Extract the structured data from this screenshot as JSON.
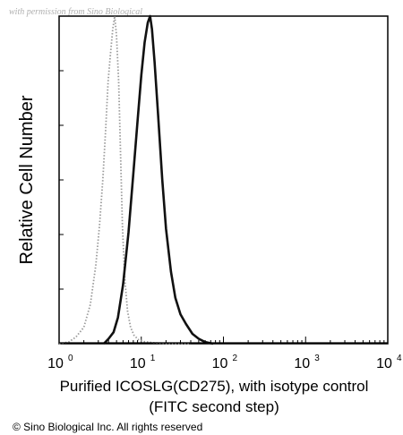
{
  "watermark": "with permission from Sino Biological",
  "copyright": "© Sino Biological Inc. All rights reserved",
  "chart_data": {
    "type": "line",
    "xscale": "log",
    "xlim": [
      1,
      10000
    ],
    "ylim": [
      0,
      100
    ],
    "xticks": [
      {
        "base": "10",
        "exp": "0",
        "value": 1
      },
      {
        "base": "10",
        "exp": "1",
        "value": 10
      },
      {
        "base": "10",
        "exp": "2",
        "value": 100
      },
      {
        "base": "10",
        "exp": "3",
        "value": 1000
      },
      {
        "base": "10",
        "exp": "4",
        "value": 10000
      }
    ],
    "xlabel_line1": "Purified ICOSLG(CD275), with isotype control",
    "xlabel_line2": "(FITC second step)",
    "ylabel": "Relative Cell Number",
    "grid": false,
    "series": [
      {
        "style": "dotted",
        "color": "#9a9a9a",
        "x": [
          1.0,
          1.3,
          1.6,
          2.0,
          2.4,
          2.8,
          3.1,
          3.4,
          3.7,
          3.95,
          4.2,
          4.5,
          4.75,
          5.0,
          5.3,
          5.6,
          5.9,
          6.3,
          6.8,
          7.4,
          8.2,
          9.3,
          11,
          14,
          20,
          40
        ],
        "y": [
          0,
          0.5,
          2,
          5,
          12,
          24,
          36,
          50,
          66,
          80,
          88,
          96,
          100,
          94,
          80,
          58,
          36,
          20,
          10,
          5,
          2.5,
          1.2,
          0.6,
          0.3,
          0.1,
          0
        ]
      },
      {
        "style": "solid",
        "color": "#111111",
        "x": [
          3.5,
          4.0,
          4.6,
          5.2,
          6.0,
          7.0,
          8.0,
          9.0,
          10.0,
          11.0,
          12.0,
          12.8,
          13.5,
          14.5,
          16.0,
          18.0,
          20.0,
          23.0,
          26.0,
          30.0,
          35.0,
          42.0,
          50.0,
          60.0,
          75.0
        ],
        "y": [
          0,
          1.5,
          3.5,
          8,
          18,
          34,
          52,
          68,
          82,
          92,
          98,
          100,
          96,
          86,
          70,
          50,
          35,
          22,
          14,
          9,
          6,
          3,
          1.5,
          0.5,
          0
        ]
      }
    ]
  }
}
